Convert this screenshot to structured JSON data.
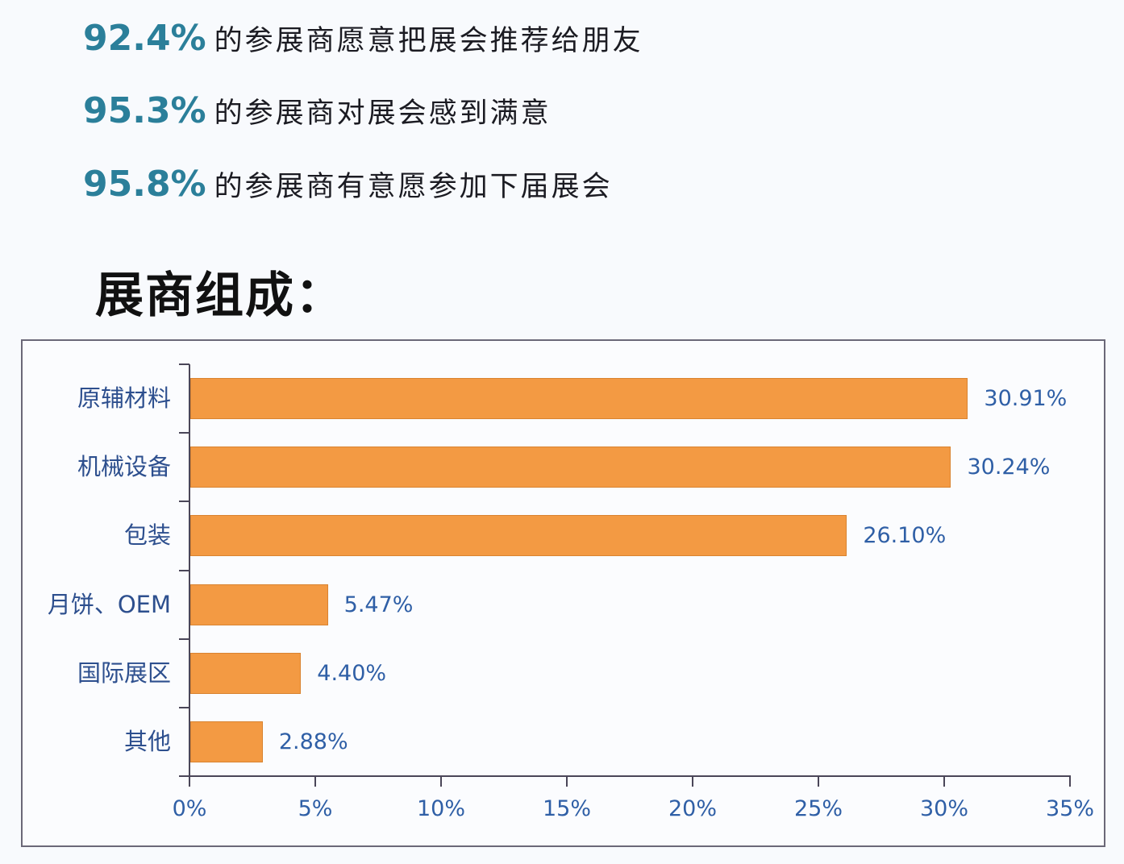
{
  "stats": [
    {
      "percent": "92.4%",
      "text": "的参展商愿意把展会推荐给朋友"
    },
    {
      "percent": "95.3%",
      "text": "的参展商对展会感到满意"
    },
    {
      "percent": "95.8%",
      "text": "的参展商有意愿参加下届展会"
    }
  ],
  "section_title": "展商组成：",
  "colors": {
    "bar": "#f39a43",
    "stat_percent": "#2b7f9a",
    "label_blue": "#2f5fa6"
  },
  "chart_data": {
    "type": "bar",
    "orientation": "horizontal",
    "title": "展商组成",
    "categories": [
      "原辅材料",
      "机械设备",
      "包装",
      "月饼、OEM",
      "国际展区",
      "其他"
    ],
    "values": [
      30.91,
      30.24,
      26.1,
      5.47,
      4.4,
      2.88
    ],
    "value_labels": [
      "30.91%",
      "30.24%",
      "26.10%",
      "5.47%",
      "4.40%",
      "2.88%"
    ],
    "xlabel": "",
    "ylabel": "",
    "xlim": [
      0,
      35
    ],
    "x_ticks": [
      "0%",
      "5%",
      "10%",
      "15%",
      "20%",
      "25%",
      "30%",
      "35%"
    ],
    "grid": false,
    "legend": "none",
    "series": [
      {
        "name": "展商组成",
        "values": [
          30.91,
          30.24,
          26.1,
          5.47,
          4.4,
          2.88
        ]
      }
    ]
  }
}
